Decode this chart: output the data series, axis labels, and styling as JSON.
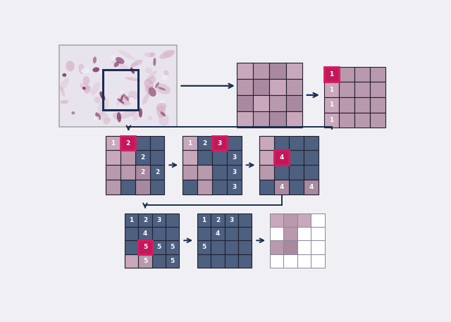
{
  "bg": "#f0f0f4",
  "blue": "#4d6080",
  "blue_dark": "#3a4f6a",
  "pink_hi": "#d81b60",
  "pink_hi_face": "#c2185b",
  "tile_pink1": "#c9a8bc",
  "tile_pink2": "#b899ad",
  "tile_pink3": "#a889a0",
  "arrow_col": "#1a2d52",
  "white": "#ffffff",
  "slide_bg": "#e8e4ee",
  "slide_border": "#aaaaaa",
  "grid_border": "#222233",
  "light_border": "#888899"
}
